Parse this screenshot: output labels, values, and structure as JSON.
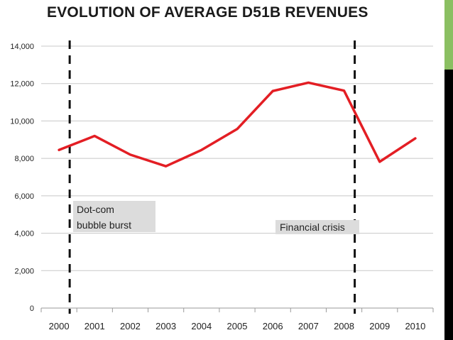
{
  "chart_data": {
    "type": "line",
    "title": "EVOLUTION OF AVERAGE D51B REVENUES",
    "xlabel": "",
    "ylabel": "",
    "categories": [
      "2000",
      "2001",
      "2002",
      "2003",
      "2004",
      "2005",
      "2006",
      "2007",
      "2008",
      "2009",
      "2010"
    ],
    "series": [
      {
        "name": "Average D51B revenues",
        "color": "#e31e24",
        "values": [
          8450,
          9200,
          8200,
          7580,
          8450,
          9570,
          11600,
          12050,
          11620,
          7820,
          9070
        ]
      }
    ],
    "ylim": [
      0,
      14000
    ],
    "yticks": [
      0,
      2000,
      4000,
      6000,
      8000,
      10000,
      12000,
      14000
    ],
    "ytick_labels": [
      "0",
      "2,000",
      "4,000",
      "6,000",
      "8,000",
      "10,000",
      "12,000",
      "14,000"
    ],
    "grid": true,
    "legend": "none",
    "reference_lines": [
      {
        "name": "dotcom",
        "x": 0.3,
        "style": "dashed",
        "color": "#111111"
      },
      {
        "name": "financial",
        "x": 8.3,
        "style": "dashed",
        "color": "#111111"
      }
    ],
    "annotations": [
      {
        "name": "dotcom",
        "lines": [
          "Dot-com",
          "bubble burst"
        ],
        "background": "#dcdcdc"
      },
      {
        "name": "financial",
        "lines": [
          "Financial crisis"
        ],
        "background": "#dcdcdc"
      }
    ]
  }
}
